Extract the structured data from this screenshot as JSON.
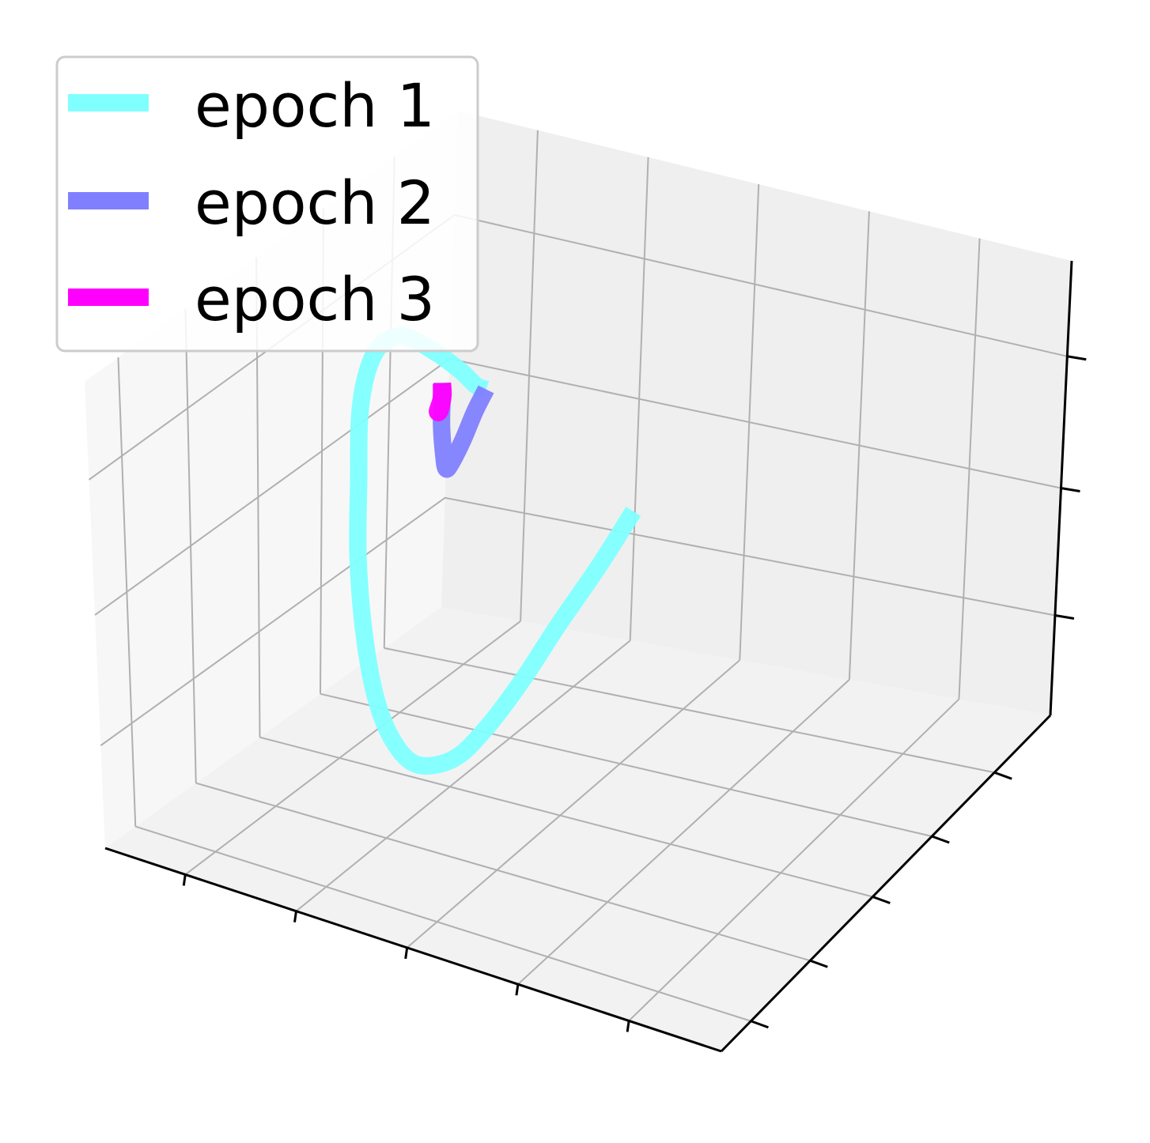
{
  "chart_data": {
    "type": "line",
    "projection": "3d",
    "title": "",
    "xlabel": "",
    "ylabel": "",
    "zlabel": "",
    "tick_labels_visible": false,
    "grid": true,
    "legend_position": "top-left",
    "series": [
      {
        "name": "epoch 1",
        "color": "#80ffff",
        "x": [
          0.75,
          0.67,
          0.58,
          0.5,
          0.42,
          0.35,
          0.28,
          0.23,
          0.19,
          0.16,
          0.14,
          0.13,
          0.12,
          0.12,
          0.13,
          0.15,
          0.19,
          0.22,
          0.24,
          0.25
        ],
        "y": [
          0.25,
          0.28,
          0.31,
          0.34,
          0.37,
          0.4,
          0.42,
          0.44,
          0.46,
          0.48,
          0.5,
          0.52,
          0.54,
          0.56,
          0.58,
          0.61,
          0.63,
          0.65,
          0.66,
          0.67
        ],
        "z": [
          0.95,
          0.76,
          0.56,
          0.38,
          0.22,
          0.11,
          0.06,
          0.08,
          0.15,
          0.27,
          0.41,
          0.55,
          0.67,
          0.75,
          0.8,
          0.81,
          0.78,
          0.74,
          0.71,
          0.7
        ]
      },
      {
        "name": "epoch 2",
        "color": "#8080ff",
        "x": [
          0.25,
          0.22,
          0.19,
          0.16,
          0.14,
          0.13,
          0.12,
          0.12,
          0.12
        ],
        "y": [
          0.67,
          0.69,
          0.71,
          0.73,
          0.75,
          0.76,
          0.77,
          0.77,
          0.77
        ],
        "z": [
          0.7,
          0.63,
          0.55,
          0.48,
          0.45,
          0.47,
          0.52,
          0.57,
          0.61
        ]
      },
      {
        "name": "epoch 3",
        "color": "#ff00ff",
        "x": [
          0.12,
          0.11,
          0.1,
          0.09,
          0.09,
          0.09
        ],
        "y": [
          0.77,
          0.79,
          0.8,
          0.81,
          0.82,
          0.82
        ],
        "z": [
          0.61,
          0.57,
          0.53,
          0.52,
          0.54,
          0.57
        ]
      }
    ]
  }
}
